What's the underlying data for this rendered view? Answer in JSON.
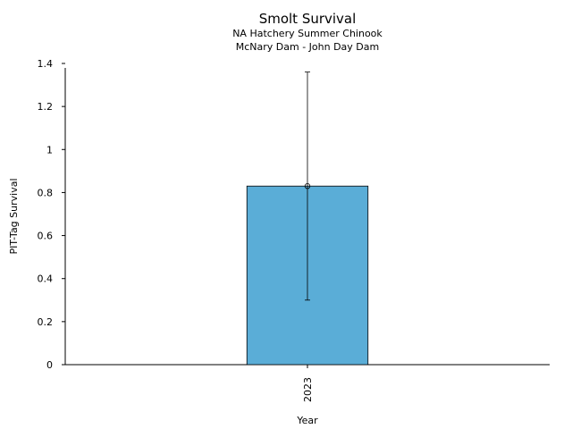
{
  "chart_data": {
    "type": "bar",
    "title": "Smolt Survival",
    "subtitle_lines": [
      "NA Hatchery Summer Chinook",
      "McNary Dam - John Day Dam"
    ],
    "xlabel": "Year",
    "ylabel": "PIT-Tag Survival",
    "categories": [
      "2023"
    ],
    "series": [
      {
        "values": [
          0.83
        ],
        "error_low": [
          0.3
        ],
        "error_high": [
          1.36
        ],
        "color": "#5aadd7"
      }
    ],
    "ylim": [
      0,
      1.4
    ],
    "yticks": [
      0,
      0.2,
      0.4,
      0.6,
      0.8,
      1,
      1.2,
      1.4
    ],
    "ytick_labels": [
      "0",
      "0.2",
      "0.4",
      "0.6",
      "0.8",
      "1",
      "1.2",
      "1.4"
    ],
    "grid": false,
    "legend": false
  }
}
